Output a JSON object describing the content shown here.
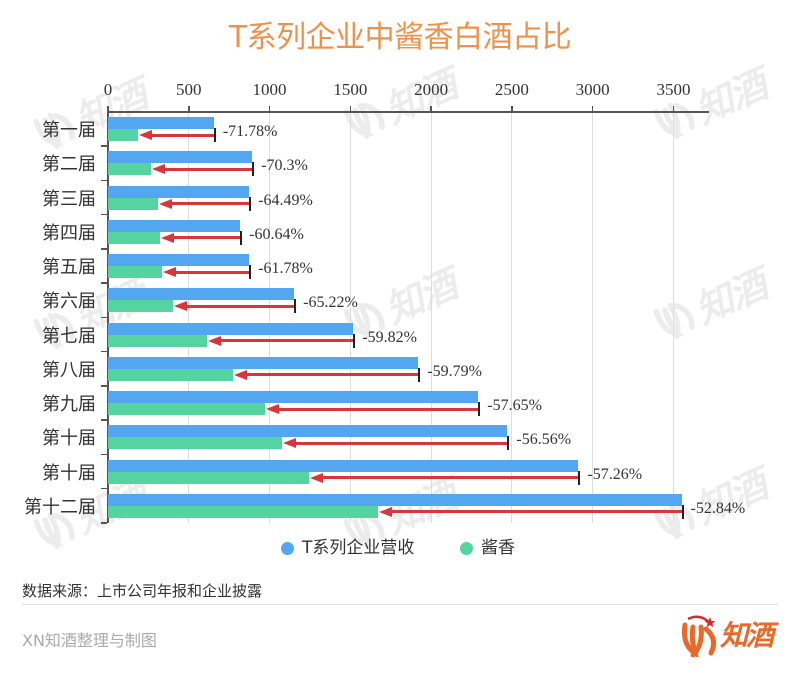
{
  "title": "T系列企业中酱香白酒占比",
  "colors": {
    "title": "#f0914a",
    "series_revenue": "#52a7f0",
    "series_jiangxiang": "#55d3a0",
    "arrow": "#d7373a",
    "error_cap": "#222222",
    "axis": "#555555",
    "grid": "#dddddd",
    "logo": "#e8692a",
    "logo_star": "#d42a2a"
  },
  "chart_data": {
    "type": "bar",
    "orientation": "horizontal",
    "title": "T系列企业中酱香白酒占比",
    "xlabel": "",
    "ylabel": "",
    "x_ticks": [
      0,
      500,
      1000,
      1500,
      2000,
      2500,
      3000,
      3500
    ],
    "x_tick_labels": [
      "0",
      "500",
      "1000",
      "1500",
      "2000",
      "2500",
      "3000",
      "3500"
    ],
    "xlim": [
      0,
      3720
    ],
    "x_axis_position": "top",
    "grid": true,
    "legend_position": "bottom",
    "categories": [
      "第一届",
      "第二届",
      "第三届",
      "第四届",
      "第五届",
      "第六届",
      "第七届",
      "第八届",
      "第九届",
      "第十届",
      "第十届",
      "第十二届"
    ],
    "series": [
      {
        "name": "T系列企业营收",
        "color": "#52a7f0",
        "values": [
          655,
          892,
          874,
          818,
          874,
          1152,
          1518,
          1921,
          2292,
          2472,
          2912,
          3550
        ]
      },
      {
        "name": "酱香",
        "color": "#55d3a0",
        "values": [
          185,
          265,
          310,
          322,
          334,
          401,
          610,
          772,
          971,
          1074,
          1245,
          1674
        ]
      }
    ],
    "annotations": {
      "type": "arrow-from-revenue-to-jiangxiang",
      "labels": [
        "-71.78%",
        "-70.3%",
        "-64.49%",
        "-60.64%",
        "-61.78%",
        "-65.22%",
        "-59.82%",
        "-59.79%",
        "-57.65%",
        "-56.56%",
        "-57.26%",
        "-52.84%"
      ]
    }
  },
  "legend": {
    "items": [
      {
        "label": "T系列企业营收",
        "color": "#52a7f0"
      },
      {
        "label": "酱香",
        "color": "#55d3a0"
      }
    ]
  },
  "footer": {
    "source": "数据来源：上市公司年报和企业披露",
    "credit": "XN知酒整理与制图"
  },
  "logo": {
    "text": "知酒"
  },
  "watermark": {
    "text": "知酒"
  }
}
